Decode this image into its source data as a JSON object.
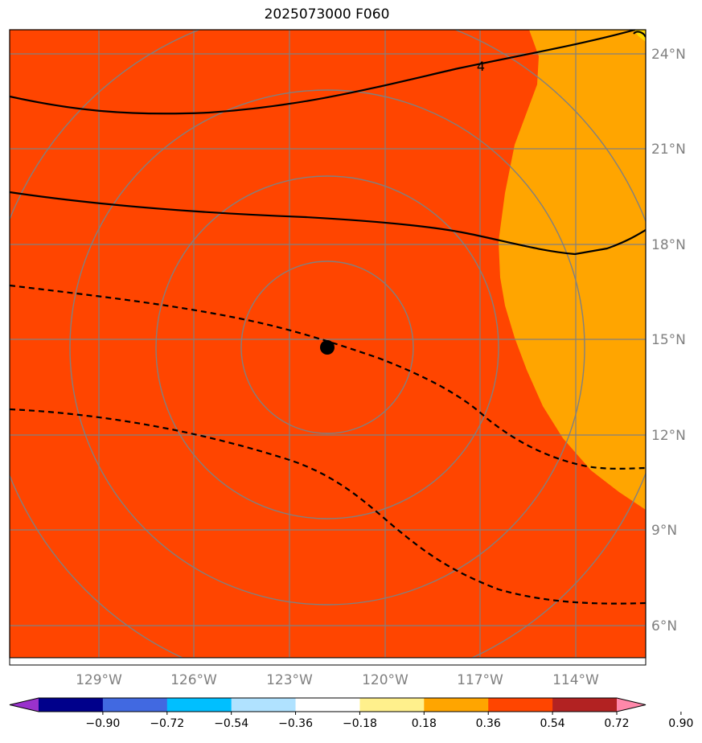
{
  "title": "2025073000 F060",
  "map": {
    "lon_labels": [
      "129°W",
      "126°W",
      "123°W",
      "120°W",
      "117°W",
      "114°W"
    ],
    "lat_labels": [
      "24°N",
      "21°N",
      "18°N",
      "15°N",
      "12°N",
      "9°N",
      "6°N"
    ],
    "contour_label": "4",
    "colors": {
      "background_fill": "#ff4500",
      "orange_fill": "#ffa500",
      "yellow_fill": "#ffd700",
      "grid": "#808080",
      "contour": "#000000",
      "center_marker": "#000000"
    }
  },
  "colorbar": {
    "tick_labels": [
      "−0.90",
      "−0.72",
      "−0.54",
      "−0.36",
      "−0.18",
      "0.18",
      "0.36",
      "0.54",
      "0.72",
      "0.90"
    ],
    "colors": [
      "#9932cc",
      "#00008b",
      "#4169e1",
      "#00bfff",
      "#b0e2ff",
      "#ffffff",
      "#fff08c",
      "#ffa500",
      "#ff4500",
      "#b22222",
      "#ff88aa"
    ]
  }
}
